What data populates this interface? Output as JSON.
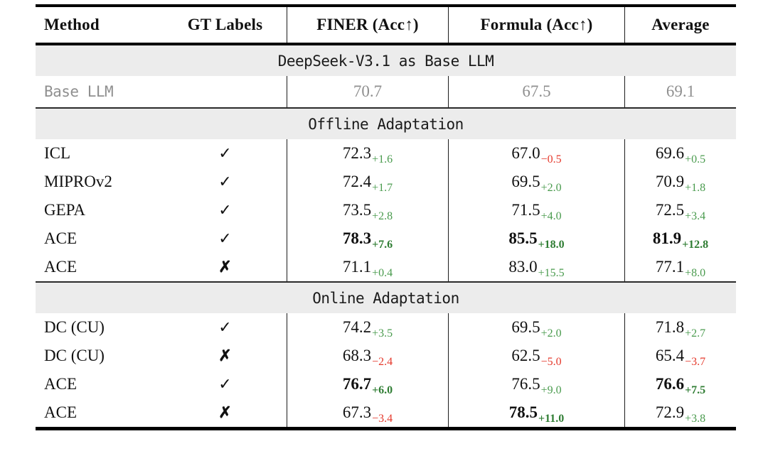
{
  "table": {
    "headers": [
      "Method",
      "GT Labels",
      "FINER (Acc↑)",
      "Formula (Acc↑)",
      "Average"
    ],
    "colors": {
      "positive_delta": "#4a9b4e",
      "positive_delta_bold": "#2f7d33",
      "negative_delta": "#e5392c",
      "section_band_bg": "#ececec",
      "muted_text": "#8f8f8f"
    },
    "gt_glyphs": {
      "yes": "✓",
      "no": "✗"
    },
    "sections": [
      {
        "band": "DeepSeek-V3.1 as Base LLM",
        "rows": [
          {
            "method": "Base LLM",
            "gt": "",
            "muted": true,
            "cells": [
              {
                "v": "70.7"
              },
              {
                "v": "67.5"
              },
              {
                "v": "69.1"
              }
            ]
          }
        ]
      },
      {
        "band": "Offline Adaptation",
        "rows": [
          {
            "method": "ICL",
            "gt": "✓",
            "cells": [
              {
                "v": "72.3",
                "d": "+1.6"
              },
              {
                "v": "67.0",
                "d": "−0.5"
              },
              {
                "v": "69.6",
                "d": "+0.5"
              }
            ]
          },
          {
            "method": "MIPROv2",
            "gt": "✓",
            "cells": [
              {
                "v": "72.4",
                "d": "+1.7"
              },
              {
                "v": "69.5",
                "d": "+2.0"
              },
              {
                "v": "70.9",
                "d": "+1.8"
              }
            ]
          },
          {
            "method": "GEPA",
            "gt": "✓",
            "cells": [
              {
                "v": "73.5",
                "d": "+2.8"
              },
              {
                "v": "71.5",
                "d": "+4.0"
              },
              {
                "v": "72.5",
                "d": "+3.4"
              }
            ]
          },
          {
            "method": "ACE",
            "gt": "✓",
            "cells": [
              {
                "v": "78.3",
                "d": "+7.6",
                "b": true
              },
              {
                "v": "85.5",
                "d": "+18.0",
                "b": true
              },
              {
                "v": "81.9",
                "d": "+12.8",
                "b": true
              }
            ]
          },
          {
            "method": "ACE",
            "gt": "✗",
            "cells": [
              {
                "v": "71.1",
                "d": "+0.4"
              },
              {
                "v": "83.0",
                "d": "+15.5"
              },
              {
                "v": "77.1",
                "d": "+8.0"
              }
            ]
          }
        ]
      },
      {
        "band": "Online Adaptation",
        "rows": [
          {
            "method": "DC (CU)",
            "gt": "✓",
            "cells": [
              {
                "v": "74.2",
                "d": "+3.5"
              },
              {
                "v": "69.5",
                "d": "+2.0"
              },
              {
                "v": "71.8",
                "d": "+2.7"
              }
            ]
          },
          {
            "method": "DC (CU)",
            "gt": "✗",
            "cells": [
              {
                "v": "68.3",
                "d": "−2.4"
              },
              {
                "v": "62.5",
                "d": "−5.0"
              },
              {
                "v": "65.4",
                "d": "−3.7"
              }
            ]
          },
          {
            "method": "ACE",
            "gt": "✓",
            "cells": [
              {
                "v": "76.7",
                "d": "+6.0",
                "b": true
              },
              {
                "v": "76.5",
                "d": "+9.0"
              },
              {
                "v": "76.6",
                "d": "+7.5",
                "b": true
              }
            ]
          },
          {
            "method": "ACE",
            "gt": "✗",
            "cells": [
              {
                "v": "67.3",
                "d": "−3.4"
              },
              {
                "v": "78.5",
                "d": "+11.0",
                "b": true
              },
              {
                "v": "72.9",
                "d": "+3.8"
              }
            ]
          }
        ]
      }
    ]
  }
}
